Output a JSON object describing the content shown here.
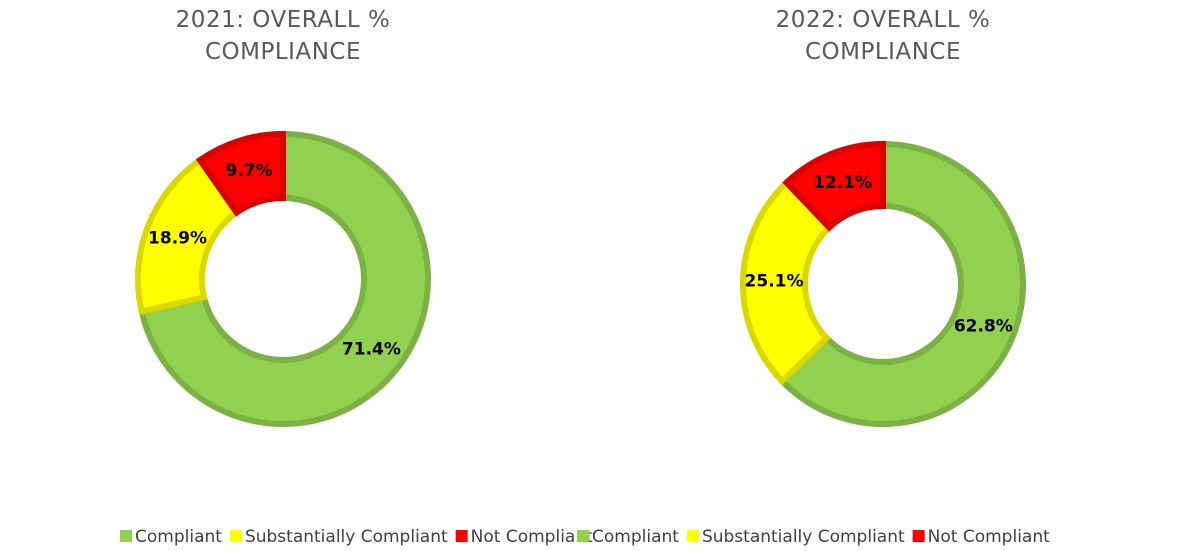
{
  "chart_data": [
    {
      "type": "donut",
      "title": "2021: OVERALL % COMPLIANCE",
      "categories": [
        "Compliant",
        "Substantially Compliant",
        "Not Compliant"
      ],
      "values": [
        71.4,
        18.9,
        9.7
      ],
      "value_labels": [
        "71.4%",
        "18.9%",
        "9.7%"
      ],
      "colors": [
        "#92d050",
        "#ffff00",
        "#ff0000"
      ],
      "legend": "bottom"
    },
    {
      "type": "donut",
      "title": "2022: OVERALL % COMPLIANCE",
      "categories": [
        "Compliant",
        "Substantially Compliant",
        "Not Compliant"
      ],
      "values": [
        62.8,
        25.1,
        12.1
      ],
      "value_labels": [
        "62.8%",
        "25.1%",
        "12.1%"
      ],
      "colors": [
        "#92d050",
        "#ffff00",
        "#ff0000"
      ],
      "legend": "bottom"
    }
  ]
}
